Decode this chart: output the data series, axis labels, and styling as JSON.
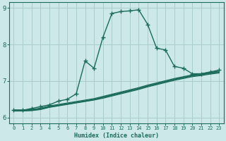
{
  "xlabel": "Humidex (Indice chaleur)",
  "ylabel": "",
  "xlim": [
    -0.5,
    23.5
  ],
  "ylim": [
    5.85,
    9.15
  ],
  "yticks": [
    6,
    7,
    8,
    9
  ],
  "xticks": [
    0,
    1,
    2,
    3,
    4,
    5,
    6,
    7,
    8,
    9,
    10,
    11,
    12,
    13,
    14,
    15,
    16,
    17,
    18,
    19,
    20,
    21,
    22,
    23
  ],
  "bg_color": "#cce8e8",
  "line_color": "#1a6b5a",
  "grid_color": "#aacccc",
  "lines": [
    {
      "x": [
        0,
        1,
        2,
        3,
        4,
        5,
        6,
        7,
        8,
        9,
        10,
        11,
        12,
        13,
        14,
        15,
        16,
        17,
        18,
        19,
        20,
        21,
        22,
        23
      ],
      "y": [
        6.2,
        6.2,
        6.25,
        6.3,
        6.35,
        6.45,
        6.5,
        6.65,
        7.55,
        7.35,
        8.2,
        8.85,
        8.9,
        8.92,
        8.95,
        8.55,
        7.9,
        7.85,
        7.4,
        7.35,
        7.2,
        7.2,
        7.25,
        7.3
      ],
      "marker": "+",
      "lw": 1.0,
      "ms": 4
    },
    {
      "x": [
        0,
        1,
        2,
        3,
        4,
        5,
        6,
        7,
        8,
        9,
        10,
        11,
        12,
        13,
        14,
        15,
        16,
        17,
        18,
        19,
        20,
        21,
        22,
        23
      ],
      "y": [
        6.2,
        6.2,
        6.21,
        6.24,
        6.3,
        6.34,
        6.38,
        6.42,
        6.46,
        6.5,
        6.56,
        6.62,
        6.68,
        6.74,
        6.8,
        6.87,
        6.93,
        6.99,
        7.05,
        7.1,
        7.15,
        7.18,
        7.22,
        7.25
      ],
      "marker": null,
      "lw": 0.9,
      "ms": 0
    },
    {
      "x": [
        0,
        1,
        2,
        3,
        4,
        5,
        6,
        7,
        8,
        9,
        10,
        11,
        12,
        13,
        14,
        15,
        16,
        17,
        18,
        19,
        20,
        21,
        22,
        23
      ],
      "y": [
        6.18,
        6.18,
        6.19,
        6.22,
        6.28,
        6.32,
        6.36,
        6.4,
        6.44,
        6.48,
        6.53,
        6.59,
        6.65,
        6.71,
        6.77,
        6.84,
        6.9,
        6.96,
        7.02,
        7.07,
        7.12,
        7.15,
        7.19,
        7.22
      ],
      "marker": null,
      "lw": 0.9,
      "ms": 0
    },
    {
      "x": [
        0,
        1,
        2,
        3,
        4,
        5,
        6,
        7,
        8,
        9,
        10,
        11,
        12,
        13,
        14,
        15,
        16,
        17,
        18,
        19,
        20,
        21,
        22,
        23
      ],
      "y": [
        6.21,
        6.21,
        6.22,
        6.26,
        6.32,
        6.36,
        6.4,
        6.44,
        6.48,
        6.52,
        6.58,
        6.64,
        6.7,
        6.76,
        6.82,
        6.89,
        6.95,
        7.01,
        7.07,
        7.12,
        7.17,
        7.2,
        7.24,
        7.27
      ],
      "marker": null,
      "lw": 0.9,
      "ms": 0
    },
    {
      "x": [
        0,
        1,
        2,
        3,
        4,
        5,
        6,
        7,
        8,
        9,
        10,
        11,
        12,
        13,
        14,
        15,
        16,
        17,
        18,
        19,
        20,
        21,
        22,
        23
      ],
      "y": [
        6.19,
        6.19,
        6.2,
        6.23,
        6.29,
        6.33,
        6.37,
        6.41,
        6.45,
        6.49,
        6.55,
        6.61,
        6.67,
        6.73,
        6.79,
        6.86,
        6.92,
        6.98,
        7.04,
        7.09,
        7.14,
        7.17,
        7.21,
        7.24
      ],
      "marker": null,
      "lw": 0.9,
      "ms": 0
    }
  ]
}
